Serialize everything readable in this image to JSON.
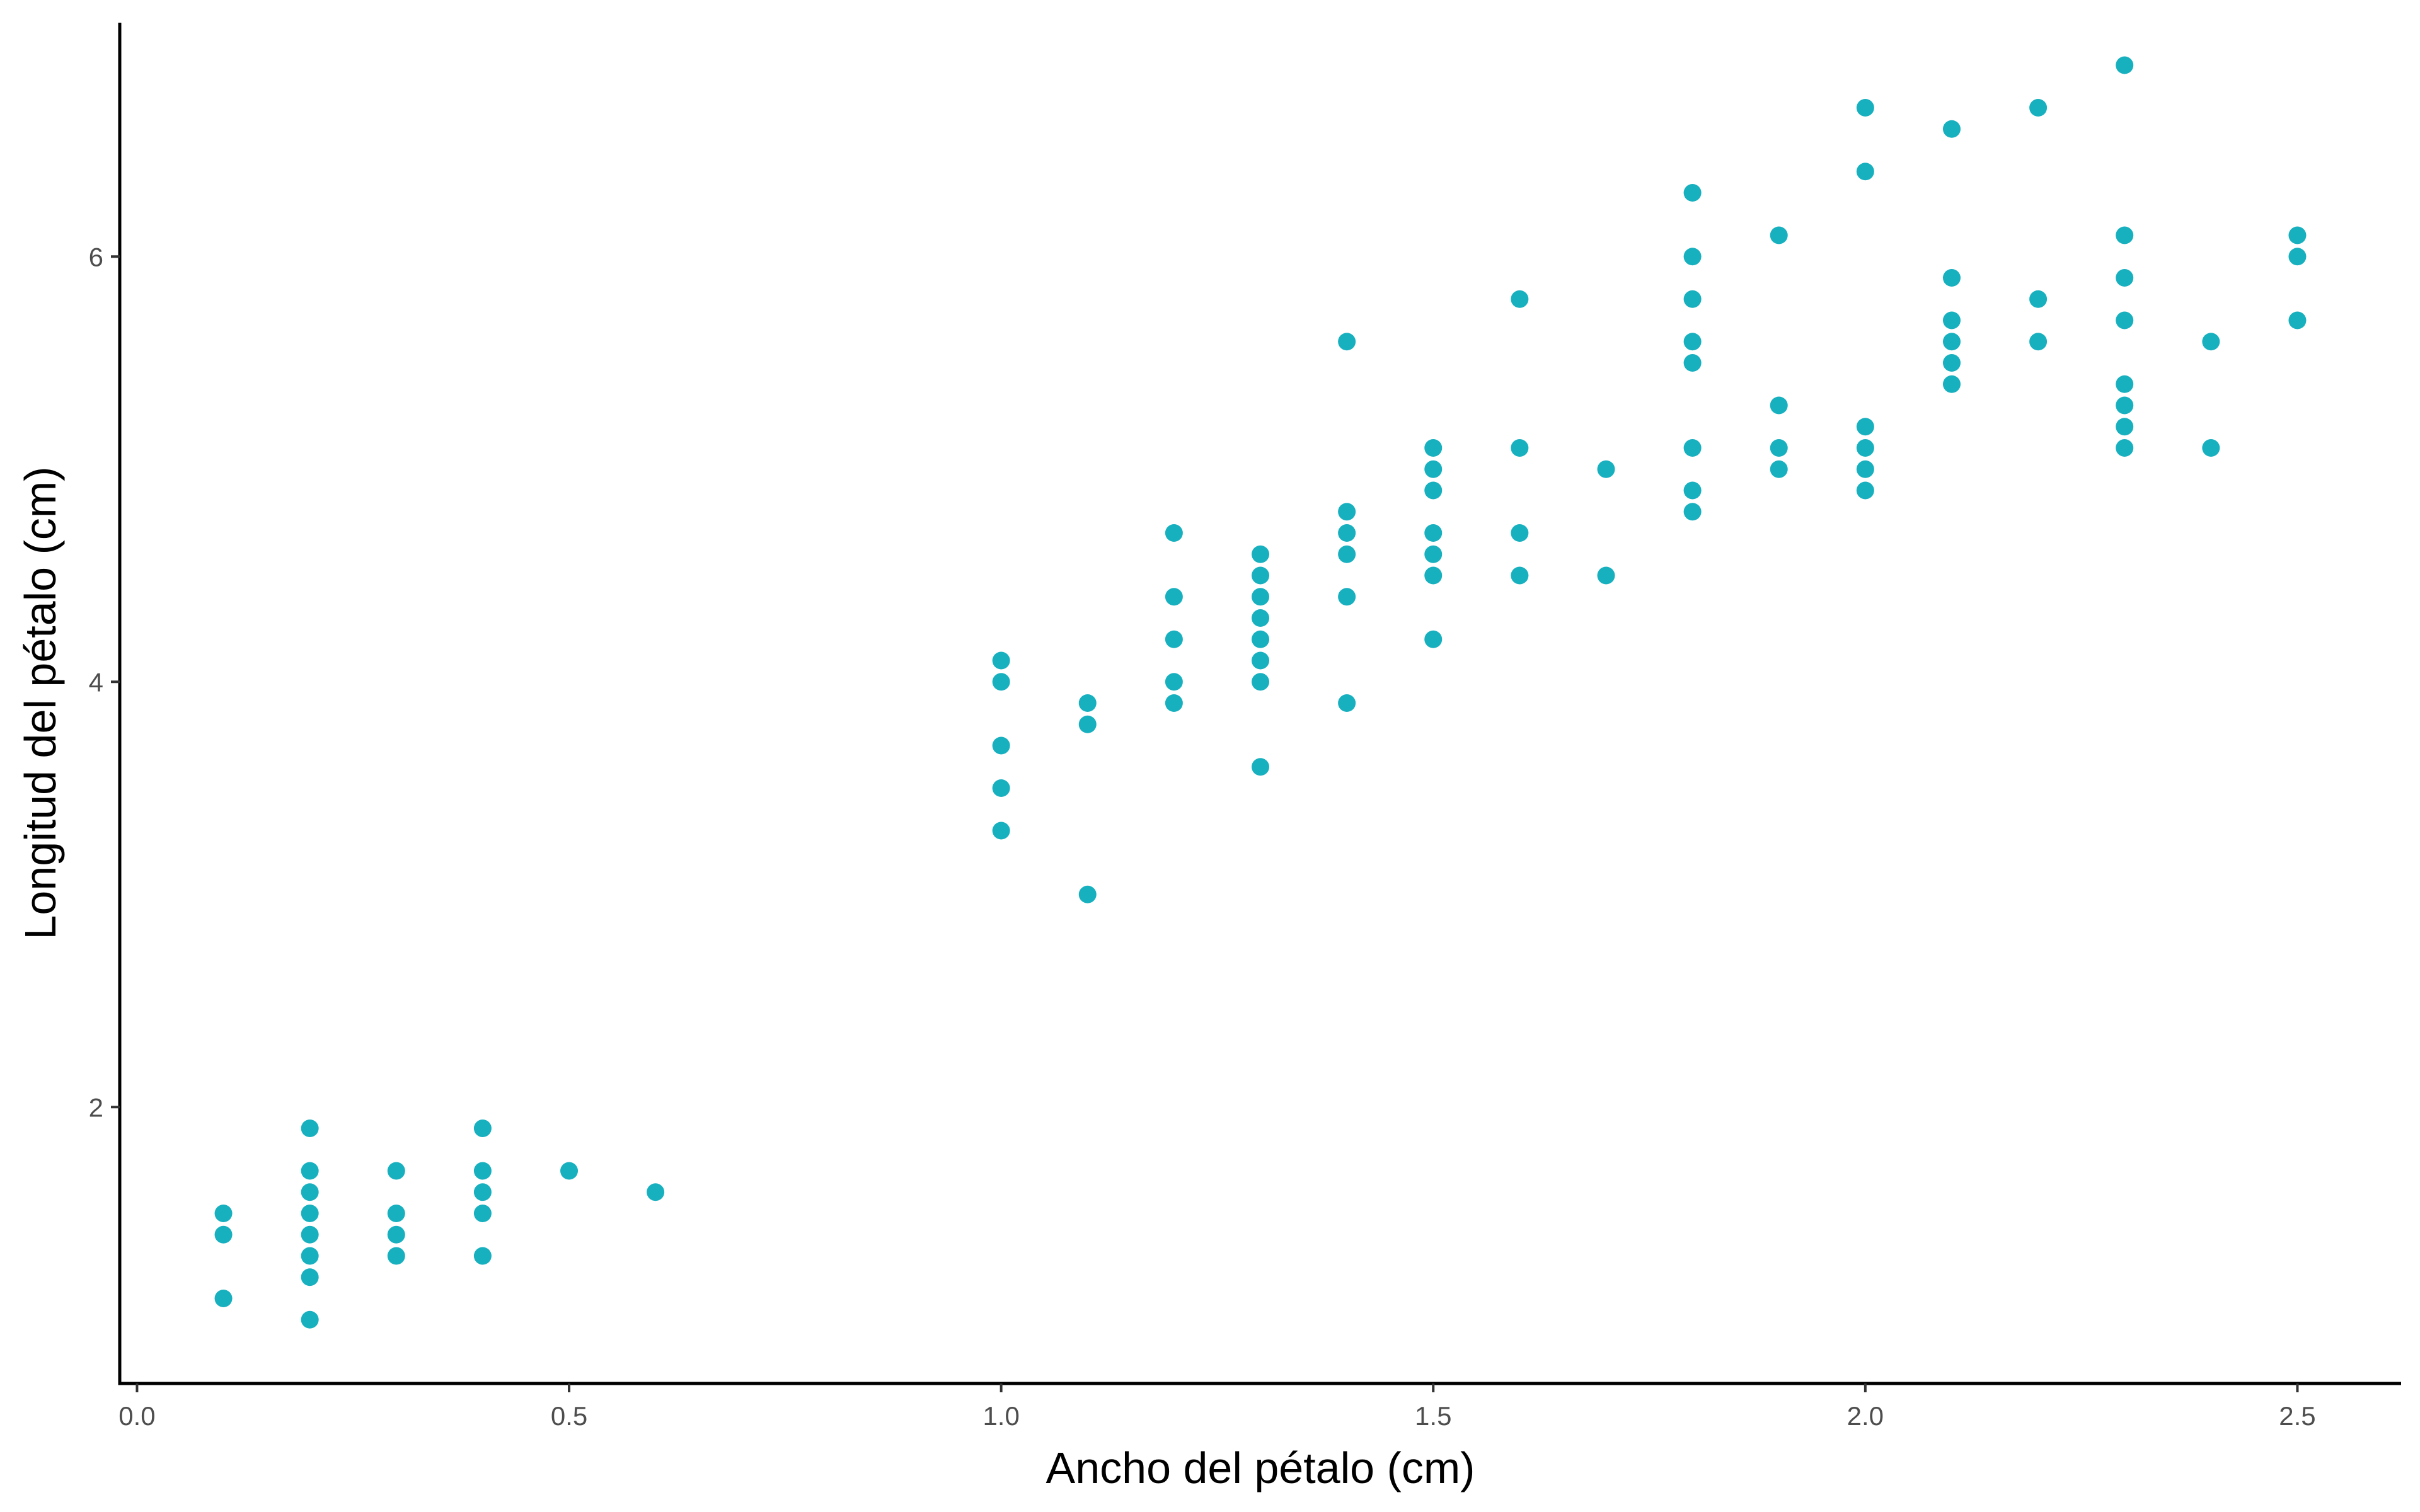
{
  "chart_data": {
    "type": "scatter",
    "xlabel": "Ancho del pétalo (cm)",
    "ylabel": "Longitud del pétalo (cm)",
    "xlim": [
      -0.02,
      2.62
    ],
    "ylim": [
      0.7,
      7.1
    ],
    "x_ticks": [
      0.0,
      0.5,
      1.0,
      1.5,
      2.0,
      2.5
    ],
    "x_tick_labels": [
      "0.0",
      "0.5",
      "1.0",
      "1.5",
      "2.0",
      "2.5"
    ],
    "y_ticks": [
      2,
      4,
      6
    ],
    "y_tick_labels": [
      "2",
      "4",
      "6"
    ],
    "grid": false,
    "point_color": "#17b0bf",
    "series": [
      {
        "points": [
          [
            0.1,
            1.5
          ],
          [
            0.1,
            1.4
          ],
          [
            0.1,
            1.1
          ],
          [
            0.2,
            1.9
          ],
          [
            0.2,
            1.7
          ],
          [
            0.2,
            1.6
          ],
          [
            0.2,
            1.5
          ],
          [
            0.2,
            1.4
          ],
          [
            0.2,
            1.3
          ],
          [
            0.2,
            1.2
          ],
          [
            0.2,
            1.0
          ],
          [
            0.3,
            1.7
          ],
          [
            0.3,
            1.5
          ],
          [
            0.3,
            1.4
          ],
          [
            0.3,
            1.3
          ],
          [
            0.4,
            1.9
          ],
          [
            0.4,
            1.7
          ],
          [
            0.4,
            1.6
          ],
          [
            0.4,
            1.5
          ],
          [
            0.4,
            1.3
          ],
          [
            0.5,
            1.7
          ],
          [
            0.6,
            1.6
          ],
          [
            1.0,
            4.1
          ],
          [
            1.0,
            4.0
          ],
          [
            1.0,
            3.7
          ],
          [
            1.0,
            3.5
          ],
          [
            1.0,
            3.3
          ],
          [
            1.1,
            3.9
          ],
          [
            1.1,
            3.8
          ],
          [
            1.1,
            3.0
          ],
          [
            1.2,
            4.7
          ],
          [
            1.2,
            4.4
          ],
          [
            1.2,
            4.2
          ],
          [
            1.2,
            4.0
          ],
          [
            1.2,
            3.9
          ],
          [
            1.3,
            4.6
          ],
          [
            1.3,
            4.5
          ],
          [
            1.3,
            4.4
          ],
          [
            1.3,
            4.3
          ],
          [
            1.3,
            4.2
          ],
          [
            1.3,
            4.1
          ],
          [
            1.3,
            4.0
          ],
          [
            1.3,
            3.6
          ],
          [
            1.4,
            5.6
          ],
          [
            1.4,
            4.8
          ],
          [
            1.4,
            4.7
          ],
          [
            1.4,
            4.6
          ],
          [
            1.4,
            4.4
          ],
          [
            1.4,
            3.9
          ],
          [
            1.5,
            5.1
          ],
          [
            1.5,
            5.0
          ],
          [
            1.5,
            4.9
          ],
          [
            1.5,
            4.7
          ],
          [
            1.5,
            4.6
          ],
          [
            1.5,
            4.5
          ],
          [
            1.5,
            4.2
          ],
          [
            1.6,
            5.8
          ],
          [
            1.6,
            5.1
          ],
          [
            1.6,
            4.7
          ],
          [
            1.6,
            4.5
          ],
          [
            1.7,
            5.0
          ],
          [
            1.7,
            4.5
          ],
          [
            1.8,
            6.3
          ],
          [
            1.8,
            6.0
          ],
          [
            1.8,
            5.8
          ],
          [
            1.8,
            5.6
          ],
          [
            1.8,
            5.5
          ],
          [
            1.8,
            5.1
          ],
          [
            1.8,
            4.9
          ],
          [
            1.8,
            4.8
          ],
          [
            1.9,
            6.1
          ],
          [
            1.9,
            5.3
          ],
          [
            1.9,
            5.1
          ],
          [
            1.9,
            5.0
          ],
          [
            2.0,
            6.7
          ],
          [
            2.0,
            6.4
          ],
          [
            2.0,
            5.2
          ],
          [
            2.0,
            5.1
          ],
          [
            2.0,
            5.0
          ],
          [
            2.0,
            4.9
          ],
          [
            2.1,
            6.6
          ],
          [
            2.1,
            5.9
          ],
          [
            2.1,
            5.7
          ],
          [
            2.1,
            5.6
          ],
          [
            2.1,
            5.5
          ],
          [
            2.1,
            5.4
          ],
          [
            2.2,
            6.7
          ],
          [
            2.2,
            5.8
          ],
          [
            2.2,
            5.6
          ],
          [
            2.3,
            6.9
          ],
          [
            2.3,
            6.1
          ],
          [
            2.3,
            5.9
          ],
          [
            2.3,
            5.7
          ],
          [
            2.3,
            5.4
          ],
          [
            2.3,
            5.3
          ],
          [
            2.3,
            5.2
          ],
          [
            2.3,
            5.1
          ],
          [
            2.4,
            5.6
          ],
          [
            2.4,
            5.1
          ],
          [
            2.5,
            6.1
          ],
          [
            2.5,
            6.0
          ],
          [
            2.5,
            5.7
          ]
        ]
      }
    ]
  }
}
